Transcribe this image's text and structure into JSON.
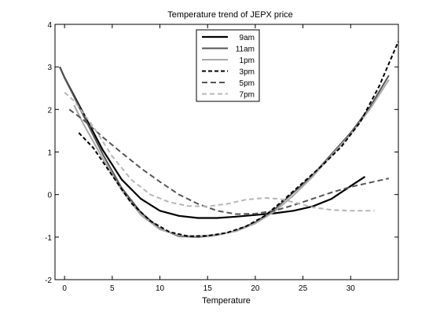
{
  "chart_data": {
    "type": "line",
    "title": "Temperature trend of JEPX price",
    "xlabel": "Temperature",
    "ylabel": "",
    "xlim": [
      -1,
      35
    ],
    "ylim": [
      -2,
      4
    ],
    "xticks": [
      0,
      5,
      10,
      15,
      20,
      25,
      30
    ],
    "yticks": [
      -2,
      -1,
      0,
      1,
      2,
      3,
      4
    ],
    "grid": false,
    "legend_position": "top-center",
    "series": [
      {
        "name": "9am",
        "color": "#000000",
        "dash": "solid",
        "width": 2.2,
        "x": [
          -0.5,
          0,
          2,
          4,
          6,
          8,
          10,
          12,
          14,
          16,
          18,
          20,
          22,
          24,
          26,
          28,
          30,
          31.5
        ],
        "y": [
          3.0,
          2.75,
          1.9,
          1.05,
          0.35,
          -0.1,
          -0.38,
          -0.5,
          -0.55,
          -0.55,
          -0.52,
          -0.48,
          -0.44,
          -0.38,
          -0.28,
          -0.1,
          0.2,
          0.42
        ]
      },
      {
        "name": "11am",
        "color": "#555555",
        "dash": "solid",
        "width": 2.0,
        "x": [
          -0.5,
          0,
          2,
          4,
          6,
          8,
          10,
          12,
          14,
          16,
          18,
          20,
          22,
          24,
          26,
          28,
          30,
          32,
          34
        ],
        "y": [
          3.0,
          2.75,
          1.85,
          0.95,
          0.15,
          -0.42,
          -0.8,
          -0.98,
          -1.0,
          -0.95,
          -0.85,
          -0.65,
          -0.35,
          0.05,
          0.45,
          0.95,
          1.45,
          2.05,
          2.8
        ]
      },
      {
        "name": "1pm",
        "color": "#a8a8a8",
        "dash": "solid",
        "width": 2.0,
        "x": [
          1,
          2,
          4,
          6,
          8,
          10,
          12,
          14,
          16,
          18,
          20,
          22,
          24,
          26,
          28,
          30,
          32,
          34
        ],
        "y": [
          2.1,
          1.65,
          0.85,
          0.1,
          -0.48,
          -0.82,
          -0.96,
          -0.98,
          -0.94,
          -0.86,
          -0.68,
          -0.4,
          -0.02,
          0.42,
          0.92,
          1.42,
          2.0,
          2.7
        ]
      },
      {
        "name": "3pm",
        "color": "#000000",
        "dash": "5,3",
        "width": 2.0,
        "x": [
          1.5,
          3,
          5,
          7,
          9,
          11,
          13,
          15,
          17,
          19,
          21,
          23,
          25,
          27,
          29,
          31,
          33,
          35
        ],
        "y": [
          1.45,
          1.1,
          0.45,
          -0.2,
          -0.62,
          -0.88,
          -0.98,
          -0.97,
          -0.9,
          -0.75,
          -0.5,
          -0.12,
          0.28,
          0.68,
          1.12,
          1.7,
          2.55,
          3.6
        ]
      },
      {
        "name": "5pm",
        "color": "#555555",
        "dash": "7,4",
        "width": 2.0,
        "x": [
          0.5,
          2,
          4,
          6,
          8,
          10,
          12,
          14,
          16,
          18,
          20,
          22,
          24,
          26,
          28,
          30,
          32,
          34
        ],
        "y": [
          2.0,
          1.75,
          1.35,
          0.98,
          0.62,
          0.3,
          0.0,
          -0.22,
          -0.38,
          -0.46,
          -0.45,
          -0.38,
          -0.25,
          -0.1,
          0.05,
          0.18,
          0.28,
          0.38
        ]
      },
      {
        "name": "7pm",
        "color": "#b5b5b5",
        "dash": "6,4",
        "width": 2.0,
        "x": [
          0,
          1,
          3,
          5,
          7,
          9,
          11,
          13,
          15,
          17,
          19,
          21,
          22.5,
          24,
          26,
          28,
          30,
          32.5
        ],
        "y": [
          2.4,
          2.2,
          1.6,
          0.9,
          0.35,
          0.0,
          -0.18,
          -0.27,
          -0.28,
          -0.22,
          -0.12,
          -0.08,
          -0.1,
          -0.18,
          -0.3,
          -0.36,
          -0.38,
          -0.38
        ]
      }
    ]
  }
}
